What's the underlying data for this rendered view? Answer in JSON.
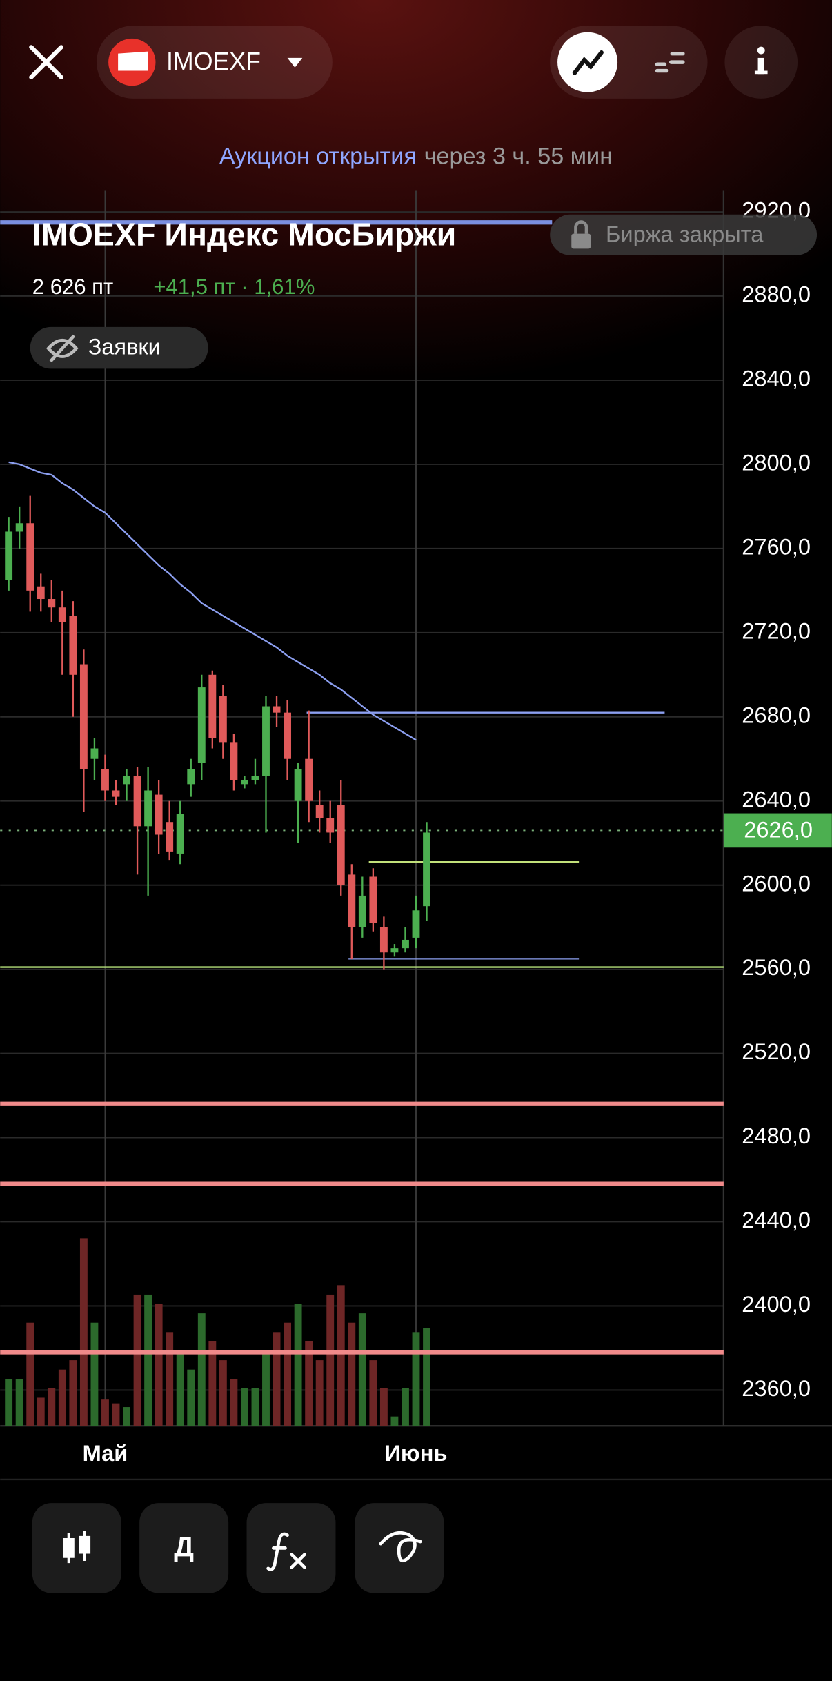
{
  "header": {
    "ticker": "IMOEXF"
  },
  "auction": {
    "label": "Аукцион открытия",
    "time": "через 3 ч. 55 мин"
  },
  "instrument": {
    "title": "IMOEXF Индекс МосБиржи",
    "status": "Биржа закрыта",
    "price": "2 626 пт",
    "change": "+41,5 пт · 1,61%",
    "orders": "Заявки"
  },
  "toolbar": {
    "period": "Д"
  },
  "chart_data": {
    "type": "candlestick",
    "categories": [
      null,
      null,
      null,
      null,
      null,
      null,
      null,
      null,
      null,
      "Май",
      null,
      null,
      null,
      null,
      null,
      null,
      null,
      null,
      null,
      null,
      null,
      null,
      null,
      null,
      null,
      null,
      null,
      null,
      null,
      null,
      null,
      null,
      null,
      null,
      null,
      null,
      null,
      null,
      "Июнь",
      null
    ],
    "open": [
      2745,
      2768,
      2772,
      2742,
      2736,
      2732,
      2728,
      2705,
      2660,
      2655,
      2645,
      2648,
      2652,
      2628,
      2643,
      2630,
      2615,
      2648,
      2658,
      2700,
      2690,
      2668,
      2648,
      2650,
      2652,
      2685,
      2682,
      2640,
      2660,
      2638,
      2632,
      2638,
      2605,
      2580,
      2604,
      2580,
      2568,
      2570,
      2575,
      2590
    ],
    "high": [
      2775,
      2780,
      2785,
      2748,
      2745,
      2740,
      2735,
      2712,
      2670,
      2662,
      2650,
      2655,
      2656,
      2656,
      2650,
      2640,
      2640,
      2660,
      2700,
      2702,
      2695,
      2672,
      2652,
      2660,
      2690,
      2690,
      2688,
      2658,
      2683,
      2645,
      2640,
      2650,
      2610,
      2604,
      2608,
      2585,
      2572,
      2580,
      2595,
      2630
    ],
    "low": [
      2740,
      2760,
      2730,
      2730,
      2725,
      2700,
      2680,
      2635,
      2650,
      2640,
      2638,
      2640,
      2605,
      2595,
      2615,
      2612,
      2610,
      2642,
      2650,
      2665,
      2660,
      2645,
      2646,
      2648,
      2625,
      2675,
      2650,
      2620,
      2630,
      2625,
      2620,
      2595,
      2565,
      2575,
      2578,
      2560,
      2566,
      2568,
      2570,
      2583
    ],
    "close": [
      2768,
      2772,
      2740,
      2736,
      2732,
      2725,
      2700,
      2655,
      2665,
      2645,
      2642,
      2652,
      2628,
      2645,
      2624,
      2616,
      2634,
      2655,
      2694,
      2670,
      2668,
      2650,
      2650,
      2652,
      2685,
      2682,
      2660,
      2655,
      2640,
      2632,
      2625,
      2600,
      2580,
      2595,
      2582,
      2568,
      2570,
      2574,
      2588,
      2625
    ],
    "volume": [
      25,
      25,
      55,
      15,
      20,
      30,
      35,
      100,
      55,
      14,
      12,
      10,
      70,
      70,
      65,
      50,
      40,
      30,
      60,
      45,
      35,
      25,
      20,
      20,
      40,
      50,
      55,
      65,
      45,
      35,
      70,
      75,
      55,
      60,
      35,
      20,
      5,
      20,
      50,
      52
    ],
    "up_color": "#4caf50",
    "down_color": "#e05a5a",
    "volume_up_color": "#2c6a2c",
    "volume_down_color": "#6e2626",
    "ma": {
      "color": "#8c9ff0",
      "values": [
        2801,
        2800,
        2798,
        2796,
        2795,
        2791,
        2788,
        2784,
        2780,
        2777,
        2772,
        2767,
        2762,
        2757,
        2752,
        2748,
        2743,
        2739,
        2734,
        2731,
        2728,
        2725,
        2722,
        2719,
        2716,
        2713,
        2709,
        2706,
        2703,
        2700,
        2696,
        2693,
        2689,
        2685,
        2681,
        2678,
        2675,
        2672,
        2669,
        null
      ]
    },
    "levels": [
      {
        "value": 2915,
        "color": "#7b8fe0"
      },
      {
        "value": 2561,
        "color": "#b5e07a"
      },
      {
        "value": 2496,
        "color": "#f08a8a"
      },
      {
        "value": 2458,
        "color": "#f08a8a"
      },
      {
        "value": 2378,
        "color": "#f08a8a"
      },
      {
        "value": 2682,
        "color": "#8c9ff0"
      },
      {
        "value": 2611,
        "color": "#c2e07a"
      },
      {
        "value": 2565,
        "color": "#8c9ff0"
      }
    ],
    "last_price": {
      "value": 2626,
      "label": "2626,0",
      "color": "#4caf50"
    },
    "ylim": [
      2343,
      2930
    ],
    "yticks": [
      {
        "value": 2920,
        "label": "2920,0"
      },
      {
        "value": 2880,
        "label": "2880,0"
      },
      {
        "value": 2840,
        "label": "2840,0"
      },
      {
        "value": 2800,
        "label": "2800,0"
      },
      {
        "value": 2760,
        "label": "2760,0"
      },
      {
        "value": 2720,
        "label": "2720,0"
      },
      {
        "value": 2680,
        "label": "2680,0"
      },
      {
        "value": 2640,
        "label": "2640,0"
      },
      {
        "value": 2600,
        "label": "2600,0"
      },
      {
        "value": 2560,
        "label": "2560,0"
      },
      {
        "value": 2520,
        "label": "2520,0"
      },
      {
        "value": 2480,
        "label": "2480,0"
      },
      {
        "value": 2440,
        "label": "2440,0"
      },
      {
        "value": 2400,
        "label": "2400,0"
      },
      {
        "value": 2360,
        "label": "2360,0"
      }
    ],
    "grid": true
  }
}
